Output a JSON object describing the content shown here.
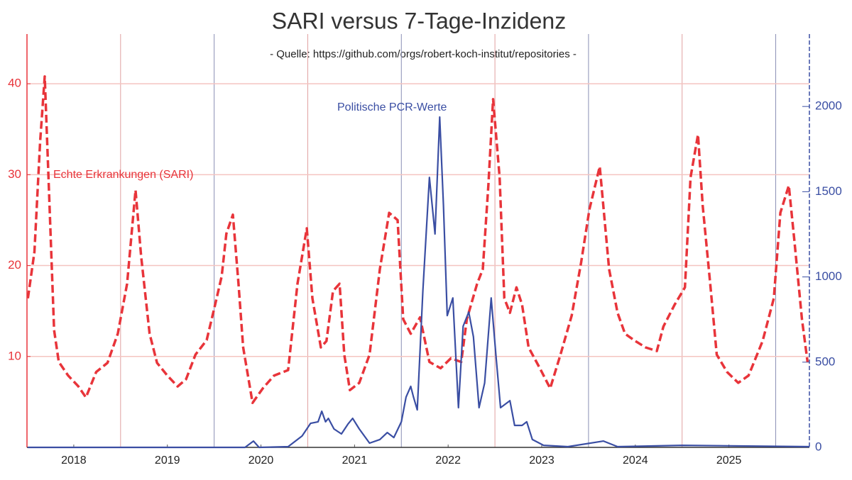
{
  "chart_data": {
    "type": "line",
    "title": "SARI versus 7-Tage-Inzidenz",
    "subtitle": "- Quelle: https://github.com/orgs/robert-koch-institut/repositories -",
    "annotations": [
      {
        "text": "Echte Erkrankungen (SARI)",
        "series": 0
      },
      {
        "text": "Politische PCR-Werte",
        "series": 1
      }
    ],
    "xlim": [
      2018,
      2026.36
    ],
    "xticks": [
      {
        "value": 2018.5,
        "label": "2018"
      },
      {
        "value": 2019.5,
        "label": "2019"
      },
      {
        "value": 2020.5,
        "label": "2020"
      },
      {
        "value": 2021.5,
        "label": "2021"
      },
      {
        "value": 2022.5,
        "label": "2022"
      },
      {
        "value": 2023.5,
        "label": "2023"
      },
      {
        "value": 2024.5,
        "label": "2024"
      },
      {
        "value": 2025.5,
        "label": "2025"
      }
    ],
    "xgrid": [
      2019,
      2020,
      2021,
      2022,
      2023,
      2024,
      2025,
      2026
    ],
    "ylim": [
      0,
      45
    ],
    "yticks": [
      10,
      20,
      30,
      40
    ],
    "y2lim": [
      0,
      2400
    ],
    "y2ticks": [
      0,
      500,
      1000,
      1500,
      2000
    ],
    "grid": true,
    "series": [
      {
        "name": "Echte Erkrankungen (SARI)",
        "color": "#e8343a",
        "axis": "y",
        "dashed": true,
        "x": [
          2018.01,
          2018.08,
          2018.14,
          2018.19,
          2018.23,
          2018.29,
          2018.34,
          2018.44,
          2018.55,
          2018.63,
          2018.74,
          2018.86,
          2018.97,
          2019.07,
          2019.16,
          2019.22,
          2019.31,
          2019.39,
          2019.5,
          2019.61,
          2019.7,
          2019.8,
          2019.92,
          2020.01,
          2020.08,
          2020.13,
          2020.2,
          2020.26,
          2020.31,
          2020.41,
          2020.52,
          2020.64,
          2020.79,
          2020.89,
          2020.99,
          2021.05,
          2021.14,
          2021.2,
          2021.27,
          2021.34,
          2021.39,
          2021.45,
          2021.55,
          2021.66,
          2021.77,
          2021.87,
          2021.96,
          2022.02,
          2022.1,
          2022.2,
          2022.3,
          2022.42,
          2022.53,
          2022.64,
          2022.7,
          2022.81,
          2022.87,
          2022.93,
          2022.98,
          2023.05,
          2023.1,
          2023.16,
          2023.23,
          2023.29,
          2023.36,
          2023.48,
          2023.59,
          2023.7,
          2023.82,
          2023.92,
          2024.01,
          2024.12,
          2024.22,
          2024.31,
          2024.39,
          2024.5,
          2024.61,
          2024.73,
          2024.8,
          2024.92,
          2025.03,
          2025.09,
          2025.17,
          2025.22,
          2025.3,
          2025.37,
          2025.48,
          2025.6,
          2025.71,
          2025.86,
          2025.98,
          2026.05,
          2026.14,
          2026.2,
          2026.28,
          2026.34
        ],
        "values": [
          16.4,
          21.5,
          33.6,
          40.8,
          29.7,
          12.9,
          9.4,
          7.9,
          6.7,
          5.5,
          8.3,
          9.3,
          12.5,
          18,
          28.3,
          21,
          12.5,
          9.3,
          7.9,
          6.7,
          7.5,
          10.2,
          11.8,
          15.7,
          18.8,
          23.5,
          25.6,
          18,
          11,
          4.9,
          6.5,
          7.9,
          8.5,
          18,
          24.1,
          16.4,
          11,
          11.7,
          17.2,
          18,
          10.2,
          6.3,
          7.1,
          10.2,
          19.6,
          25.8,
          25,
          14.1,
          12.5,
          14.3,
          9.4,
          8.7,
          9.8,
          9.4,
          14.1,
          18,
          19.6,
          28.9,
          38.3,
          29.7,
          16.4,
          14.8,
          17.6,
          15.7,
          11,
          8.7,
          6.5,
          10.2,
          14.5,
          20.3,
          26.2,
          30.9,
          19.6,
          14.8,
          12.5,
          11.7,
          11,
          10.6,
          13.3,
          15.7,
          17.6,
          29.7,
          34.4,
          26.6,
          18,
          10.2,
          8.3,
          7.1,
          7.9,
          11.7,
          16.4,
          25.8,
          28.8,
          22.7,
          14.1,
          9.4
        ]
      },
      {
        "name": "Politische PCR-Werte",
        "color": "#3a4ea3",
        "axis": "y2",
        "dashed": false,
        "x": [
          2018.01,
          2020.33,
          2020.42,
          2020.48,
          2020.79,
          2020.94,
          2021.03,
          2021.11,
          2021.15,
          2021.19,
          2021.22,
          2021.28,
          2021.36,
          2021.43,
          2021.48,
          2021.55,
          2021.66,
          2021.77,
          2021.85,
          2021.92,
          2022.0,
          2022.05,
          2022.1,
          2022.13,
          2022.17,
          2022.23,
          2022.3,
          2022.36,
          2022.41,
          2022.45,
          2022.49,
          2022.55,
          2022.61,
          2022.66,
          2022.72,
          2022.77,
          2022.83,
          2022.89,
          2022.96,
          2023.01,
          2023.06,
          2023.16,
          2023.21,
          2023.29,
          2023.34,
          2023.4,
          2023.52,
          2023.78,
          2024.16,
          2024.31,
          2025.0,
          2026.36
        ],
        "values": [
          0,
          0,
          37,
          0,
          4,
          67,
          141,
          150,
          212,
          150,
          170,
          108,
          79,
          137,
          170,
          108,
          25,
          46,
          87,
          58,
          150,
          295,
          358,
          295,
          220,
          919,
          1584,
          1252,
          1938,
          1418,
          773,
          877,
          233,
          711,
          794,
          649,
          233,
          378,
          877,
          545,
          233,
          274,
          129,
          129,
          150,
          46,
          12,
          4,
          37,
          4,
          12,
          4
        ]
      }
    ]
  }
}
